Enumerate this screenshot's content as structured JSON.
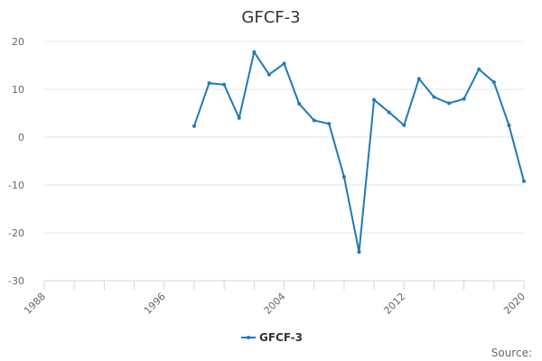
{
  "chart_data": {
    "type": "line",
    "title": "GFCF-3",
    "xlabel": "",
    "ylabel": "",
    "xlim": [
      1988,
      2020
    ],
    "ylim": [
      -30,
      20
    ],
    "x_ticks": [
      1988,
      1996,
      2004,
      2012,
      2020
    ],
    "y_ticks": [
      20,
      10,
      0,
      -10,
      -20,
      -30
    ],
    "grid": "horizontal",
    "legend_position": "bottom-center",
    "series": [
      {
        "name": "GFCF-3",
        "color": "#1f7ab8",
        "x": [
          1998,
          1999,
          2000,
          2001,
          2002,
          2003,
          2004,
          2005,
          2006,
          2007,
          2008,
          2009,
          2010,
          2011,
          2012,
          2013,
          2014,
          2015,
          2016,
          2017,
          2018,
          2019,
          2020
        ],
        "y": [
          2.3,
          11.3,
          11.0,
          4.0,
          17.8,
          13.1,
          15.4,
          7.0,
          3.5,
          2.8,
          -8.3,
          -24.0,
          7.8,
          5.2,
          2.5,
          12.2,
          8.4,
          7.1,
          8.0,
          14.2,
          11.5,
          2.5,
          -9.2
        ]
      }
    ],
    "source_label": "Source:"
  }
}
